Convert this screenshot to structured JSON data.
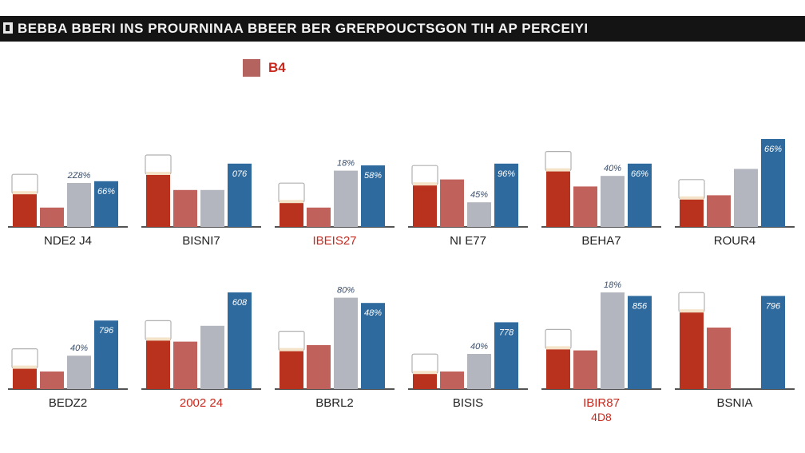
{
  "header": {
    "title": "BEBBA BBERI INS PROURNINAA BBEER BER GRERPOUCTSGON TIH AP PERCEIYI"
  },
  "legend": {
    "label": "B4"
  },
  "colors": {
    "beer": "#b8321e",
    "salmon": "#c0615b",
    "gray": "#b3b6be",
    "blue": "#2e6a9e",
    "label_red": "#c8291e",
    "label_dark": "#222222",
    "value_label": "#3a4f6e"
  },
  "chart_data": [
    {
      "type": "bar",
      "category": "NDE2 J4",
      "category_color": "dark",
      "annotation": "",
      "values": [
        19,
        11,
        25,
        26
      ],
      "value_labels": {
        "gray": "2Z8%",
        "blue": "66%"
      }
    },
    {
      "type": "bar",
      "category": "BISNI7",
      "category_color": "dark",
      "annotation": "",
      "values": [
        30,
        21,
        21,
        36
      ],
      "value_labels": {
        "gray": "",
        "blue": "076"
      }
    },
    {
      "type": "bar",
      "category": "IBEIS27",
      "category_color": "red",
      "annotation": "",
      "values": [
        14,
        11,
        32,
        35
      ],
      "value_labels": {
        "gray": "18%",
        "blue": "58%"
      }
    },
    {
      "type": "bar",
      "category": "NI E77",
      "category_color": "dark",
      "annotation": "",
      "values": [
        24,
        27,
        14,
        36
      ],
      "value_labels": {
        "gray": "45%",
        "blue": "96%"
      }
    },
    {
      "type": "bar",
      "category": "BEHA7",
      "category_color": "dark",
      "annotation": "",
      "values": [
        32,
        23,
        29,
        36
      ],
      "value_labels": {
        "gray": "40%",
        "blue": "66%"
      }
    },
    {
      "type": "bar",
      "category": "ROUR4",
      "category_color": "dark",
      "annotation": "",
      "values": [
        16,
        18,
        33,
        50
      ],
      "value_labels": {
        "gray": "",
        "blue": "66%"
      }
    },
    {
      "type": "bar",
      "category": "BEDZ2",
      "category_color": "dark",
      "annotation": "",
      "values": [
        12,
        10,
        19,
        39
      ],
      "value_labels": {
        "gray": "40%",
        "blue": "796"
      }
    },
    {
      "type": "bar",
      "category": "2002 24",
      "category_color": "red",
      "annotation": "",
      "values": [
        28,
        27,
        36,
        55
      ],
      "value_labels": {
        "gray": "",
        "blue": "608"
      }
    },
    {
      "type": "bar",
      "category": "BBRL2",
      "category_color": "dark",
      "annotation": "",
      "values": [
        22,
        25,
        52,
        49
      ],
      "value_labels": {
        "gray": "80%",
        "blue": "48%"
      }
    },
    {
      "type": "bar",
      "category": "BISIS",
      "category_color": "dark",
      "annotation": "",
      "values": [
        9,
        10,
        20,
        38
      ],
      "value_labels": {
        "gray": "40%",
        "blue": "778"
      }
    },
    {
      "type": "bar",
      "category": "IBIR87",
      "category_color": "red",
      "annotation": "4D8",
      "values": [
        23,
        22,
        55,
        53
      ],
      "value_labels": {
        "gray": "18%",
        "blue": "856"
      }
    },
    {
      "type": "bar",
      "category": "BSNIA",
      "category_color": "dark",
      "annotation": "",
      "values": [
        44,
        35,
        null,
        53
      ],
      "value_labels": {
        "gray": "",
        "blue": "796"
      }
    }
  ]
}
